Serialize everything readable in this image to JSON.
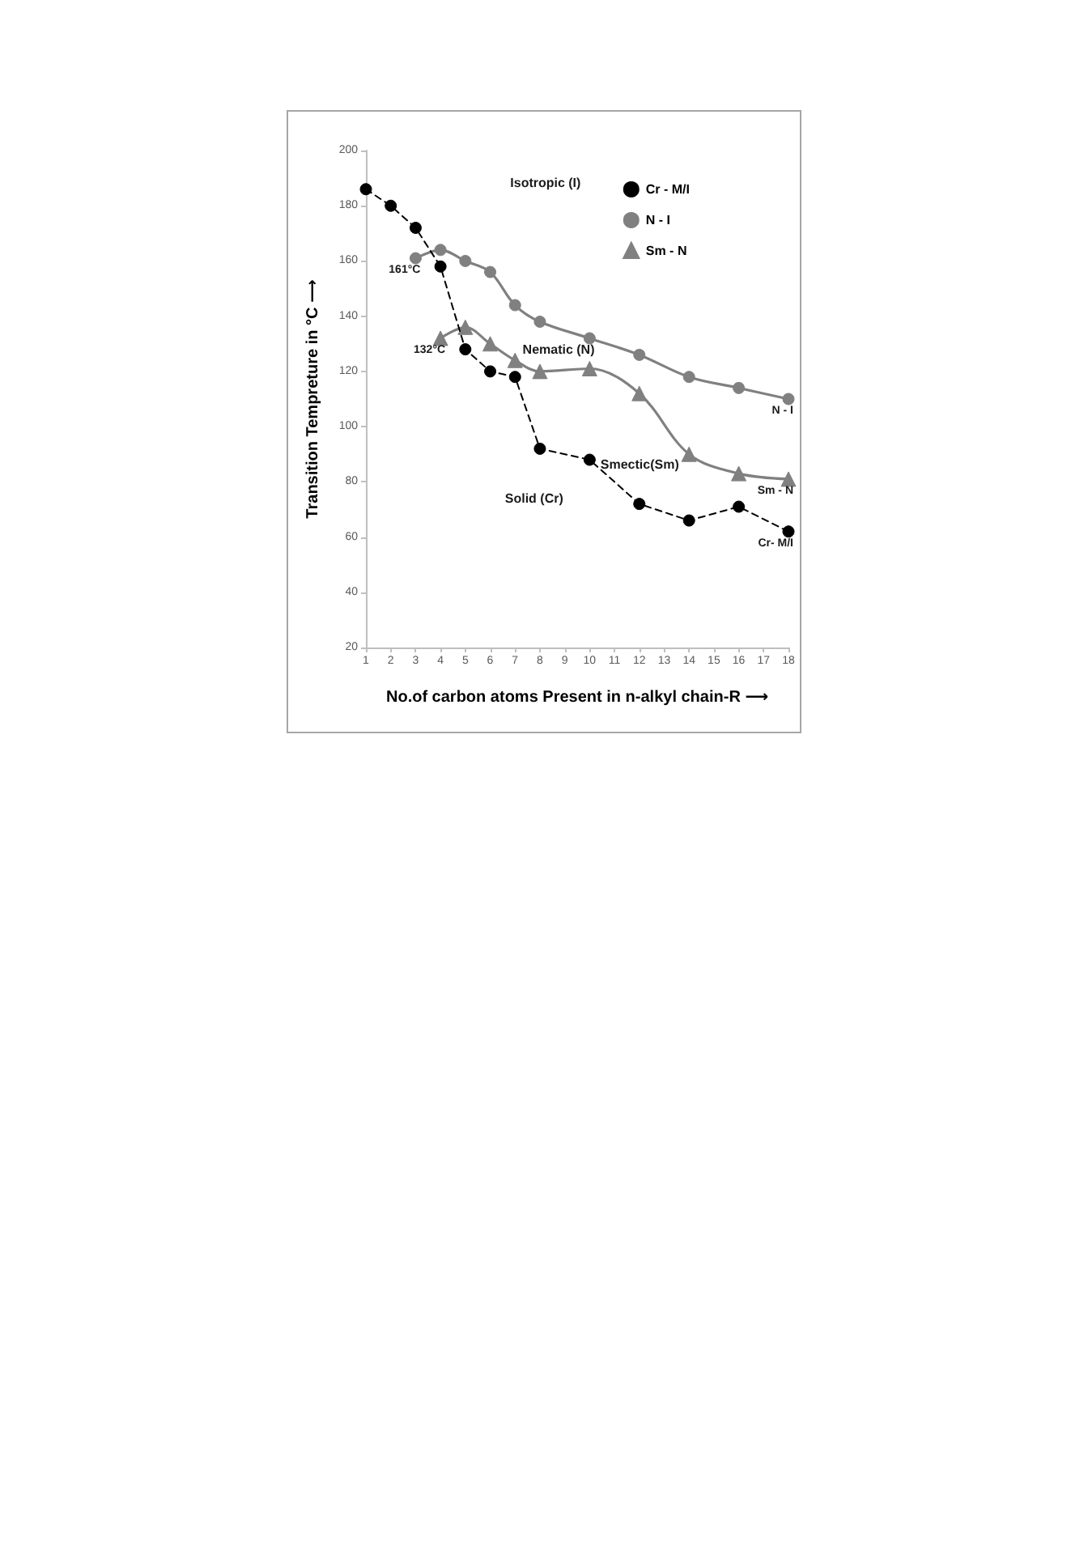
{
  "chart_data": {
    "type": "line",
    "xlabel": "No.of carbon atoms Present in n-alkyl chain-R ⟶",
    "ylabel": "Transition Tempreture in °C ⟶",
    "xlim": [
      1,
      18
    ],
    "xticks": [
      1,
      2,
      3,
      4,
      5,
      6,
      7,
      8,
      9,
      10,
      11,
      12,
      13,
      14,
      15,
      16,
      17,
      18
    ],
    "ylim": [
      20,
      200
    ],
    "yticks": [
      20,
      40,
      60,
      80,
      100,
      120,
      140,
      160,
      180,
      200
    ],
    "legend": "top right",
    "series": [
      {
        "name": "Cr - M/I",
        "color": "#000000",
        "marker": "circle",
        "line_style": "dashed",
        "x": [
          1,
          2,
          3,
          4,
          5,
          6,
          7,
          8,
          10,
          12,
          14,
          16,
          18
        ],
        "values": [
          186,
          180,
          172,
          158,
          128,
          120,
          118,
          92,
          88,
          72,
          66,
          71,
          62
        ]
      },
      {
        "name": "N - I",
        "color": "#808080",
        "marker": "circle",
        "line_style": "solid",
        "x": [
          3,
          4,
          5,
          6,
          7,
          8,
          10,
          12,
          14,
          16,
          18
        ],
        "values": [
          161,
          164,
          160,
          156,
          144,
          138,
          132,
          126,
          118,
          114,
          110
        ]
      },
      {
        "name": "Sm - N",
        "color": "#808080",
        "marker": "triangle",
        "line_style": "solid",
        "x": [
          4,
          5,
          6,
          7,
          8,
          10,
          12,
          14,
          16,
          18
        ],
        "values": [
          132,
          136,
          130,
          124,
          120,
          121,
          112,
          90,
          83,
          81
        ]
      }
    ],
    "annotations": [
      "Isotropic (I)",
      "Nematic (N)",
      "Solid (Cr)",
      "Smectic(Sm)",
      {
        "text": "161°C",
        "x": 3,
        "y": 161
      },
      {
        "text": "132°C",
        "x": 4,
        "y": 132
      },
      {
        "text": "N - I",
        "x": 18,
        "y": 110
      },
      {
        "text": "Sm - N",
        "x": 18,
        "y": 81
      },
      {
        "text": "Cr- M/I",
        "x": 18,
        "y": 62
      }
    ]
  }
}
